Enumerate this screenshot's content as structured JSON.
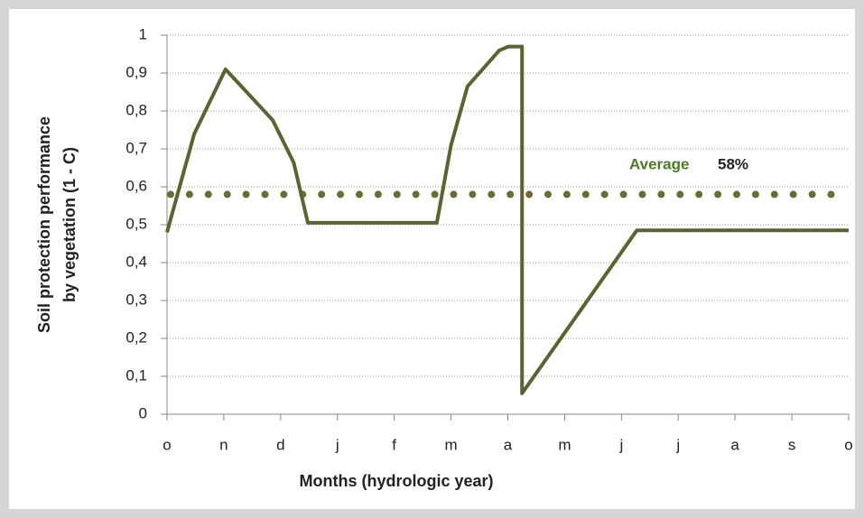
{
  "chart_data": {
    "type": "line",
    "ylabel": [
      "Soil protection performance",
      "by vegetation (1 - C)"
    ],
    "xlabel": "Months (hydrologic year)",
    "xlim": [
      0,
      12
    ],
    "xticks": [
      {
        "value": 0,
        "label": "o"
      },
      {
        "value": 1,
        "label": "n"
      },
      {
        "value": 2,
        "label": "d"
      },
      {
        "value": 3,
        "label": "j"
      },
      {
        "value": 4,
        "label": "f"
      },
      {
        "value": 5,
        "label": "m"
      },
      {
        "value": 6,
        "label": "a"
      },
      {
        "value": 7,
        "label": "m"
      },
      {
        "value": 8,
        "label": "j"
      },
      {
        "value": 9,
        "label": "j"
      },
      {
        "value": 10,
        "label": "a"
      },
      {
        "value": 11,
        "label": "s"
      },
      {
        "value": 12,
        "label": "o"
      }
    ],
    "ylim": [
      0,
      1
    ],
    "yticks": [
      0,
      {
        "value": 0.1,
        "label": "0,1"
      },
      {
        "value": 0.2,
        "label": "0,2"
      },
      {
        "value": 0.3,
        "label": "0,3"
      },
      {
        "value": 0.4,
        "label": "0,4"
      },
      {
        "value": 0.5,
        "label": "0,5"
      },
      {
        "value": 0.6,
        "label": "0,6"
      },
      {
        "value": 0.7,
        "label": "0,7"
      },
      {
        "value": 0.8,
        "label": "0,8"
      },
      {
        "value": 0.9,
        "label": "0,9"
      },
      1
    ],
    "grid": true,
    "series": [
      {
        "color": "#5e6130",
        "x": [
          0,
          0.48,
          1.03,
          1.86,
          2.23,
          2.48,
          4.75,
          5.0,
          5.29,
          5.85,
          6.01,
          6.25,
          6.25,
          8.27,
          12
        ],
        "values": [
          0.48,
          0.74,
          0.91,
          0.776,
          0.664,
          0.505,
          0.505,
          0.71,
          0.865,
          0.96,
          0.97,
          0.97,
          0.055,
          0.485,
          0.485
        ]
      }
    ],
    "average": {
      "label": "Average",
      "value": 0.58,
      "value_label": "58%",
      "color": "#6b6b35",
      "label_color": "#4a7a23"
    }
  }
}
